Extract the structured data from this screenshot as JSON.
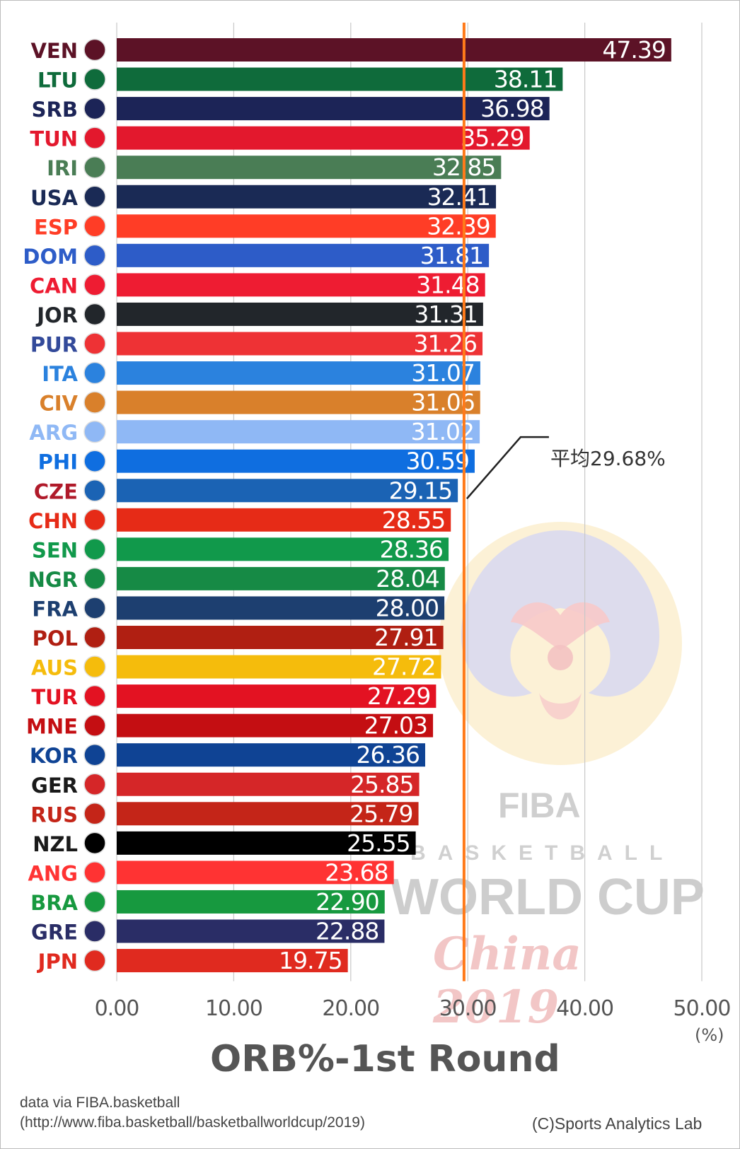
{
  "chart_data": {
    "type": "bar",
    "orientation": "horizontal",
    "title": "ORB%-1st Round",
    "unit": "(%)",
    "xlim": [
      0,
      50
    ],
    "x_ticks": [
      "0.00",
      "10.00",
      "20.00",
      "30.00",
      "40.00",
      "50.00"
    ],
    "grid": true,
    "average": {
      "value": 29.68,
      "label": "平均29.68%",
      "color": "#ff7a1a"
    },
    "categories": [
      "VEN",
      "LTU",
      "SRB",
      "TUN",
      "IRI",
      "USA",
      "ESP",
      "DOM",
      "CAN",
      "JOR",
      "PUR",
      "ITA",
      "CIV",
      "ARG",
      "PHI",
      "CZE",
      "CHN",
      "SEN",
      "NGR",
      "FRA",
      "POL",
      "AUS",
      "TUR",
      "MNE",
      "KOR",
      "GER",
      "RUS",
      "NZL",
      "ANG",
      "BRA",
      "GRE",
      "JPN"
    ],
    "values": [
      47.39,
      38.11,
      36.98,
      35.29,
      32.85,
      32.41,
      32.39,
      31.81,
      31.48,
      31.31,
      31.26,
      31.07,
      31.06,
      31.02,
      30.59,
      29.15,
      28.55,
      28.36,
      28.04,
      28.0,
      27.91,
      27.72,
      27.29,
      27.03,
      26.36,
      25.85,
      25.79,
      25.55,
      23.68,
      22.9,
      22.88,
      19.75
    ],
    "value_labels": [
      "47.39",
      "38.11",
      "36.98",
      "35.29",
      "32.85",
      "32.41",
      "32.39",
      "31.81",
      "31.48",
      "31.31",
      "31.26",
      "31.07",
      "31.06",
      "31.02",
      "30.59",
      "29.15",
      "28.55",
      "28.36",
      "28.04",
      "28.00",
      "27.91",
      "27.72",
      "27.29",
      "27.03",
      "26.36",
      "25.85",
      "25.79",
      "25.55",
      "23.68",
      "22.90",
      "22.88",
      "19.75"
    ],
    "colors": [
      "#5c1226",
      "#0f6b3b",
      "#1c2457",
      "#e3182d",
      "#4a7d55",
      "#1a2a55",
      "#ff3d26",
      "#2d5cc8",
      "#ee1c32",
      "#22262b",
      "#ee3235",
      "#2b82de",
      "#d9802b",
      "#8fb8f5",
      "#0f6ee0",
      "#1b63b4",
      "#e62b17",
      "#11994b",
      "#168a45",
      "#1d3f70",
      "#b01f12",
      "#f5bc0c",
      "#e31222",
      "#c40e12",
      "#0f4394",
      "#d52628",
      "#c42518",
      "#000000",
      "#ff3333",
      "#17993f",
      "#2a2d66",
      "#e02a1f"
    ],
    "label_colors": [
      "#5c1226",
      "#0f6b3b",
      "#1c2457",
      "#e3182d",
      "#4a7d55",
      "#1a2a55",
      "#ff3d26",
      "#2d5cc8",
      "#ee1c32",
      "#22262b",
      "#334a9a",
      "#2b82de",
      "#d9802b",
      "#8fb8f5",
      "#0f6ee0",
      "#b01a2a",
      "#e62b17",
      "#11994b",
      "#168a45",
      "#1d3f70",
      "#b01f12",
      "#f5bc0c",
      "#e31222",
      "#c40e12",
      "#0f4394",
      "#1a1a1a",
      "#c42518",
      "#1a1a1a",
      "#ff3333",
      "#17993f",
      "#2a2d66",
      "#e02a1f"
    ]
  },
  "credits": {
    "source": "data via FIBA.basketball",
    "url": "(http://www.fiba.basketball/basketballworldcup/2019)",
    "copyright": "(C)Sports Analytics Lab"
  },
  "watermark": {
    "fiba": "FIBA",
    "basketball": "BASKETBALL",
    "world_cup": "WORLD CUP",
    "china": "China 2019"
  }
}
